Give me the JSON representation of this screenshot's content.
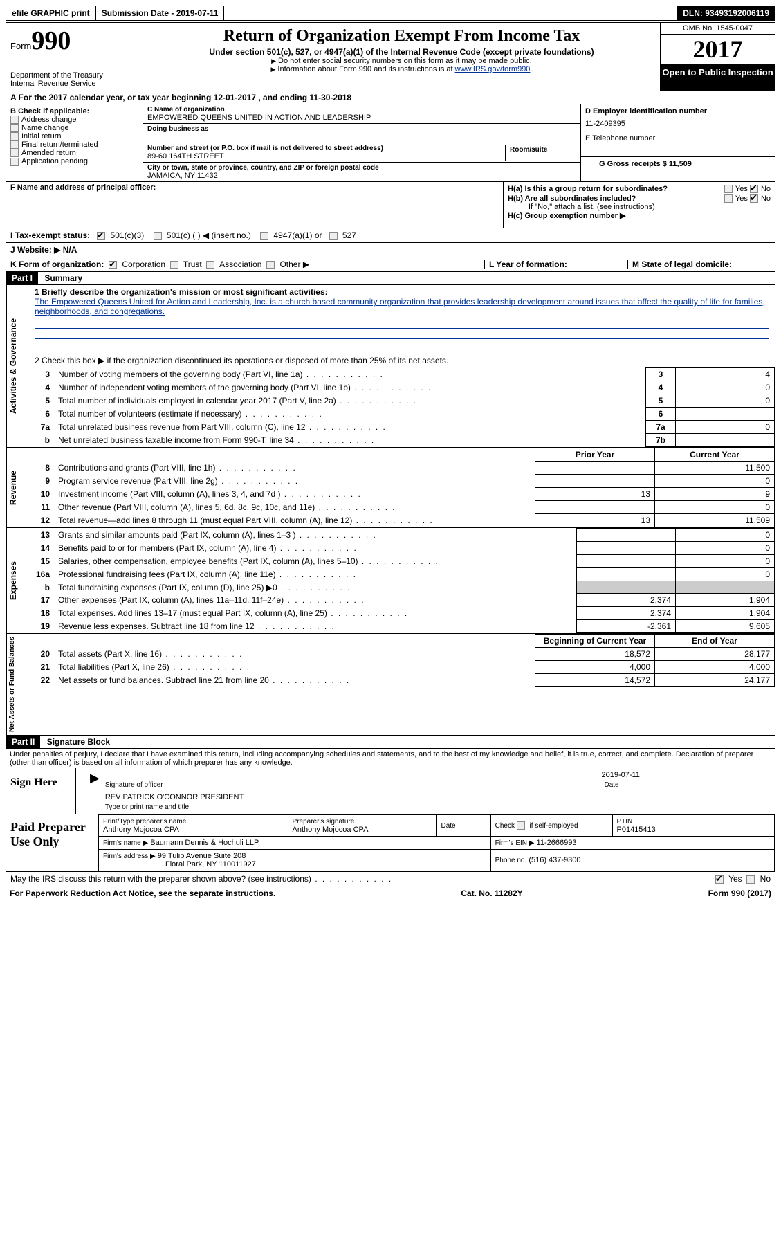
{
  "topbar": {
    "efile": "efile GRAPHIC print",
    "submission": "Submission Date - 2019-07-11",
    "dln": "DLN: 93493192006119"
  },
  "header": {
    "form_label": "Form",
    "form_num": "990",
    "dept": "Department of the Treasury",
    "irs": "Internal Revenue Service",
    "title": "Return of Organization Exempt From Income Tax",
    "subtitle": "Under section 501(c), 527, or 4947(a)(1) of the Internal Revenue Code (except private foundations)",
    "note1": "Do not enter social security numbers on this form as it may be made public.",
    "note2": "Information about Form 990 and its instructions is at ",
    "link": "www.IRS.gov/form990",
    "omb": "OMB No. 1545-0047",
    "year": "2017",
    "inspection": "Open to Public Inspection"
  },
  "row_a": "A  For the 2017 calendar year, or tax year beginning 12-01-2017   , and ending 11-30-2018",
  "col_b": {
    "header": "B Check if applicable:",
    "items": [
      "Address change",
      "Name change",
      "Initial return",
      "Final return/terminated",
      "Amended return",
      "Application pending"
    ]
  },
  "col_c": {
    "name_lbl": "C Name of organization",
    "name": "EMPOWERED QUEENS UNITED IN ACTION AND LEADERSHIP",
    "dba_lbl": "Doing business as",
    "addr_lbl": "Number and street (or P.O. box if mail is not delivered to street address)",
    "addr": "89-60 164TH STREET",
    "suite_lbl": "Room/suite",
    "city_lbl": "City or town, state or province, country, and ZIP or foreign postal code",
    "city": "JAMAICA, NY  11432"
  },
  "col_d": {
    "ein_lbl": "D Employer identification number",
    "ein": "11-2409395",
    "phone_lbl": "E Telephone number",
    "gross_lbl": "G Gross receipts $ 11,509"
  },
  "f_row": {
    "f_lbl": "F Name and address of principal officer:",
    "ha": "H(a)  Is this a group return for subordinates?",
    "hb": "H(b)  Are all subordinates included?",
    "hb_note": "If \"No,\" attach a list. (see instructions)",
    "hc": "H(c)  Group exemption number ▶",
    "yes": "Yes",
    "no": "No"
  },
  "i_row": {
    "label": "I  Tax-exempt status:",
    "o1": "501(c)(3)",
    "o2": "501(c) (  ) ◀ (insert no.)",
    "o3": "4947(a)(1) or",
    "o4": "527"
  },
  "j_row": "J  Website: ▶  N/A",
  "k_row": {
    "label": "K Form of organization:",
    "o1": "Corporation",
    "o2": "Trust",
    "o3": "Association",
    "o4": "Other ▶",
    "l": "L Year of formation:",
    "m": "M State of legal domicile:"
  },
  "part1": {
    "header": "Part I",
    "title": "Summary",
    "mission_lbl": "1   Briefly describe the organization's mission or most significant activities:",
    "mission": "The Empowered Queens United for Action and Leadership, Inc. is a church based community organization that provides leadership development around issues that affect the quality of life for families, neighborhoods, and congregations.",
    "line2": "2   Check this box ▶        if the organization discontinued its operations or disposed of more than 25% of its net assets.",
    "gov_lines": [
      {
        "n": "3",
        "d": "Number of voting members of the governing body (Part VI, line 1a)",
        "c": "3",
        "v": "4"
      },
      {
        "n": "4",
        "d": "Number of independent voting members of the governing body (Part VI, line 1b)",
        "c": "4",
        "v": "0"
      },
      {
        "n": "5",
        "d": "Total number of individuals employed in calendar year 2017 (Part V, line 2a)",
        "c": "5",
        "v": "0"
      },
      {
        "n": "6",
        "d": "Total number of volunteers (estimate if necessary)",
        "c": "6",
        "v": ""
      },
      {
        "n": "7a",
        "d": "Total unrelated business revenue from Part VIII, column (C), line 12",
        "c": "7a",
        "v": "0"
      },
      {
        "n": "b",
        "d": "Net unrelated business taxable income from Form 990-T, line 34",
        "c": "7b",
        "v": ""
      }
    ],
    "col_prior": "Prior Year",
    "col_current": "Current Year",
    "rev_lines": [
      {
        "n": "8",
        "d": "Contributions and grants (Part VIII, line 1h)",
        "p": "",
        "c": "11,500"
      },
      {
        "n": "9",
        "d": "Program service revenue (Part VIII, line 2g)",
        "p": "",
        "c": "0"
      },
      {
        "n": "10",
        "d": "Investment income (Part VIII, column (A), lines 3, 4, and 7d )",
        "p": "13",
        "c": "9"
      },
      {
        "n": "11",
        "d": "Other revenue (Part VIII, column (A), lines 5, 6d, 8c, 9c, 10c, and 11e)",
        "p": "",
        "c": "0"
      },
      {
        "n": "12",
        "d": "Total revenue—add lines 8 through 11 (must equal Part VIII, column (A), line 12)",
        "p": "13",
        "c": "11,509"
      }
    ],
    "exp_lines": [
      {
        "n": "13",
        "d": "Grants and similar amounts paid (Part IX, column (A), lines 1–3 )",
        "p": "",
        "c": "0"
      },
      {
        "n": "14",
        "d": "Benefits paid to or for members (Part IX, column (A), line 4)",
        "p": "",
        "c": "0"
      },
      {
        "n": "15",
        "d": "Salaries, other compensation, employee benefits (Part IX, column (A), lines 5–10)",
        "p": "",
        "c": "0"
      },
      {
        "n": "16a",
        "d": "Professional fundraising fees (Part IX, column (A), line 11e)",
        "p": "",
        "c": "0"
      },
      {
        "n": "b",
        "d": "Total fundraising expenses (Part IX, column (D), line 25) ▶0",
        "p": "gray",
        "c": "gray"
      },
      {
        "n": "17",
        "d": "Other expenses (Part IX, column (A), lines 11a–11d, 11f–24e)",
        "p": "2,374",
        "c": "1,904"
      },
      {
        "n": "18",
        "d": "Total expenses. Add lines 13–17 (must equal Part IX, column (A), line 25)",
        "p": "2,374",
        "c": "1,904"
      },
      {
        "n": "19",
        "d": "Revenue less expenses. Subtract line 18 from line 12",
        "p": "-2,361",
        "c": "9,605"
      }
    ],
    "col_begin": "Beginning of Current Year",
    "col_end": "End of Year",
    "net_lines": [
      {
        "n": "20",
        "d": "Total assets (Part X, line 16)",
        "p": "18,572",
        "c": "28,177"
      },
      {
        "n": "21",
        "d": "Total liabilities (Part X, line 26)",
        "p": "4,000",
        "c": "4,000"
      },
      {
        "n": "22",
        "d": "Net assets or fund balances. Subtract line 21 from line 20",
        "p": "14,572",
        "c": "24,177"
      }
    ]
  },
  "part2": {
    "header": "Part II",
    "title": "Signature Block",
    "penalty": "Under penalties of perjury, I declare that I have examined this return, including accompanying schedules and statements, and to the best of my knowledge and belief, it is true, correct, and complete. Declaration of preparer (other than officer) is based on all information of which preparer has any knowledge.",
    "sign_here": "Sign Here",
    "sig_officer": "Signature of officer",
    "sig_date": "2019-07-11",
    "date_lbl": "Date",
    "officer_name": "REV PATRICK O'CONNOR  PRESIDENT",
    "officer_name_lbl": "Type or print name and title",
    "paid": "Paid Preparer Use Only",
    "prep_name_lbl": "Print/Type preparer's name",
    "prep_name": "Anthony Mojocoa CPA",
    "prep_sig_lbl": "Preparer's signature",
    "prep_sig": "Anthony Mojocoa CPA",
    "prep_date_lbl": "Date",
    "self_emp": "Check        if self-employed",
    "ptin_lbl": "PTIN",
    "ptin": "P01415413",
    "firm_name_lbl": "Firm's name     ▶",
    "firm_name": "Baumann Dennis & Hochuli LLP",
    "firm_ein_lbl": "Firm's EIN ▶",
    "firm_ein": "11-2666993",
    "firm_addr_lbl": "Firm's address ▶",
    "firm_addr": "99 Tulip Avenue Suite 208",
    "firm_city": "Floral Park, NY  110011927",
    "firm_phone_lbl": "Phone no.",
    "firm_phone": "(516) 437-9300",
    "discuss": "May the IRS discuss this return with the preparer shown above? (see instructions)",
    "yes": "Yes",
    "no": "No"
  },
  "footer": {
    "left": "For Paperwork Reduction Act Notice, see the separate instructions.",
    "mid": "Cat. No. 11282Y",
    "right": "Form 990 (2017)"
  }
}
